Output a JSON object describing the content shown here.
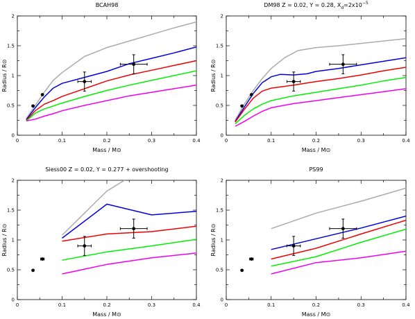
{
  "chart_data": [
    {
      "type": "line",
      "title": "BCAH98",
      "xlabel": "Mass / M⊙",
      "ylabel": "Radius / R⊙",
      "xlim": [
        0,
        0.4
      ],
      "ylim": [
        0,
        2
      ],
      "xticks": [
        "0",
        "0.1",
        "0.2",
        "0.3",
        "0.4"
      ],
      "yticks": [
        "0",
        "0.5",
        "1",
        "1.5",
        "2"
      ],
      "series": [
        {
          "color": "#aaaaaa",
          "points": [
            [
              0.02,
              0.28
            ],
            [
              0.04,
              0.5
            ],
            [
              0.06,
              0.72
            ],
            [
              0.08,
              0.92
            ],
            [
              0.1,
              1.05
            ],
            [
              0.15,
              1.32
            ],
            [
              0.2,
              1.47
            ],
            [
              0.25,
              1.58
            ],
            [
              0.3,
              1.69
            ],
            [
              0.35,
              1.8
            ],
            [
              0.4,
              1.9
            ]
          ]
        },
        {
          "color": "#0000dd",
          "points": [
            [
              0.02,
              0.26
            ],
            [
              0.04,
              0.46
            ],
            [
              0.06,
              0.64
            ],
            [
              0.08,
              0.79
            ],
            [
              0.1,
              0.87
            ],
            [
              0.15,
              0.97
            ],
            [
              0.2,
              1.07
            ],
            [
              0.25,
              1.2
            ],
            [
              0.3,
              1.29
            ],
            [
              0.35,
              1.38
            ],
            [
              0.4,
              1.48
            ]
          ]
        },
        {
          "color": "#ee0000",
          "points": [
            [
              0.02,
              0.25
            ],
            [
              0.04,
              0.41
            ],
            [
              0.06,
              0.52
            ],
            [
              0.08,
              0.58
            ],
            [
              0.1,
              0.65
            ],
            [
              0.15,
              0.78
            ],
            [
              0.2,
              0.91
            ],
            [
              0.25,
              1.01
            ],
            [
              0.3,
              1.09
            ],
            [
              0.35,
              1.17
            ],
            [
              0.4,
              1.25
            ]
          ]
        },
        {
          "color": "#00ee00",
          "points": [
            [
              0.02,
              0.24
            ],
            [
              0.04,
              0.37
            ],
            [
              0.06,
              0.44
            ],
            [
              0.08,
              0.49
            ],
            [
              0.1,
              0.54
            ],
            [
              0.15,
              0.65
            ],
            [
              0.2,
              0.75
            ],
            [
              0.25,
              0.84
            ],
            [
              0.3,
              0.92
            ],
            [
              0.35,
              1.0
            ],
            [
              0.4,
              1.08
            ]
          ]
        },
        {
          "color": "#ee00ee",
          "points": [
            [
              0.02,
              0.24
            ],
            [
              0.04,
              0.27
            ],
            [
              0.06,
              0.32
            ],
            [
              0.08,
              0.36
            ],
            [
              0.1,
              0.41
            ],
            [
              0.15,
              0.5
            ],
            [
              0.2,
              0.58
            ],
            [
              0.25,
              0.66
            ],
            [
              0.3,
              0.72
            ],
            [
              0.35,
              0.78
            ],
            [
              0.4,
              0.84
            ]
          ]
        }
      ],
      "observations": [
        {
          "x": 0.035,
          "y": 0.49,
          "xerr": 0,
          "yerr": 0
        },
        {
          "x": 0.056,
          "y": 0.68,
          "xerr": 0,
          "yerr": 0
        },
        {
          "x": 0.15,
          "y": 0.9,
          "xerr": 0.015,
          "yerr": 0.16
        },
        {
          "x": 0.26,
          "y": 1.19,
          "xerr": 0.03,
          "yerr": 0.16
        }
      ]
    },
    {
      "type": "line",
      "title": "DM98 Z = 0.02, Y = 0.28, X_d=2x10^-5",
      "title_parts": {
        "main": "DM98 Z = 0.02, Y = 0.28, X",
        "sub": "d",
        "rest": "=2x10",
        "sup": "−5"
      },
      "xlabel": "Mass / M⊙",
      "ylabel": "Radius / R⊙",
      "xlim": [
        0,
        0.4
      ],
      "ylim": [
        0,
        2
      ],
      "xticks": [
        "0",
        "0.1",
        "0.2",
        "0.3",
        "0.4"
      ],
      "yticks": [
        "0",
        "0.5",
        "1",
        "1.5",
        "2"
      ],
      "series": [
        {
          "color": "#aaaaaa",
          "points": [
            [
              0.02,
              0.25
            ],
            [
              0.04,
              0.52
            ],
            [
              0.06,
              0.75
            ],
            [
              0.08,
              0.95
            ],
            [
              0.1,
              1.12
            ],
            [
              0.13,
              1.3
            ],
            [
              0.16,
              1.42
            ],
            [
              0.2,
              1.47
            ],
            [
              0.25,
              1.5
            ],
            [
              0.3,
              1.54
            ],
            [
              0.35,
              1.58
            ],
            [
              0.4,
              1.62
            ]
          ]
        },
        {
          "color": "#0000dd",
          "points": [
            [
              0.02,
              0.23
            ],
            [
              0.04,
              0.47
            ],
            [
              0.06,
              0.7
            ],
            [
              0.08,
              0.88
            ],
            [
              0.1,
              0.98
            ],
            [
              0.12,
              1.02
            ],
            [
              0.15,
              1.01
            ],
            [
              0.18,
              1.03
            ],
            [
              0.2,
              1.07
            ],
            [
              0.25,
              1.12
            ],
            [
              0.3,
              1.18
            ],
            [
              0.35,
              1.24
            ],
            [
              0.4,
              1.3
            ]
          ]
        },
        {
          "color": "#ee0000",
          "points": [
            [
              0.02,
              0.22
            ],
            [
              0.04,
              0.43
            ],
            [
              0.06,
              0.62
            ],
            [
              0.08,
              0.74
            ],
            [
              0.1,
              0.79
            ],
            [
              0.15,
              0.84
            ],
            [
              0.2,
              0.9
            ],
            [
              0.25,
              0.95
            ],
            [
              0.3,
              1.01
            ],
            [
              0.35,
              1.08
            ],
            [
              0.4,
              1.14
            ]
          ]
        },
        {
          "color": "#00ee00",
          "points": [
            [
              0.02,
              0.19
            ],
            [
              0.04,
              0.33
            ],
            [
              0.06,
              0.44
            ],
            [
              0.08,
              0.52
            ],
            [
              0.1,
              0.58
            ],
            [
              0.15,
              0.66
            ],
            [
              0.2,
              0.72
            ],
            [
              0.25,
              0.78
            ],
            [
              0.3,
              0.84
            ],
            [
              0.35,
              0.91
            ],
            [
              0.4,
              0.97
            ]
          ]
        },
        {
          "color": "#ee00ee",
          "points": [
            [
              0.02,
              0.15
            ],
            [
              0.04,
              0.23
            ],
            [
              0.06,
              0.32
            ],
            [
              0.08,
              0.4
            ],
            [
              0.1,
              0.46
            ],
            [
              0.15,
              0.53
            ],
            [
              0.2,
              0.58
            ],
            [
              0.25,
              0.63
            ],
            [
              0.3,
              0.68
            ],
            [
              0.35,
              0.73
            ],
            [
              0.4,
              0.78
            ]
          ]
        }
      ],
      "observations": [
        {
          "x": 0.035,
          "y": 0.49,
          "xerr": 0,
          "yerr": 0
        },
        {
          "x": 0.056,
          "y": 0.68,
          "xerr": 0,
          "yerr": 0
        },
        {
          "x": 0.15,
          "y": 0.9,
          "xerr": 0.015,
          "yerr": 0.16
        },
        {
          "x": 0.26,
          "y": 1.19,
          "xerr": 0.03,
          "yerr": 0.16
        }
      ]
    },
    {
      "type": "line",
      "title": "Siess00 Z = 0.02, Y = 0.277 + overshooting",
      "xlabel": "Mass / M⊙",
      "ylabel": "Radius / R⊙",
      "xlim": [
        0,
        0.4
      ],
      "ylim": [
        0,
        2
      ],
      "xticks": [
        "0",
        "0.1",
        "0.2",
        "0.3",
        "0.4"
      ],
      "yticks": [
        "0",
        "0.5",
        "1",
        "1.5",
        "2"
      ],
      "series": [
        {
          "color": "#aaaaaa",
          "points": [
            [
              0.1,
              1.08
            ],
            [
              0.2,
              1.82
            ],
            [
              0.25,
              2.05
            ]
          ]
        },
        {
          "color": "#0000dd",
          "points": [
            [
              0.1,
              1.03
            ],
            [
              0.2,
              1.6
            ],
            [
              0.3,
              1.42
            ],
            [
              0.4,
              1.48
            ]
          ]
        },
        {
          "color": "#ee0000",
          "points": [
            [
              0.1,
              0.98
            ],
            [
              0.2,
              1.1
            ],
            [
              0.3,
              1.14
            ],
            [
              0.4,
              1.23
            ]
          ]
        },
        {
          "color": "#00ee00",
          "points": [
            [
              0.1,
              0.66
            ],
            [
              0.2,
              0.8
            ],
            [
              0.3,
              0.9
            ],
            [
              0.4,
              1.01
            ]
          ]
        },
        {
          "color": "#ee00ee",
          "points": [
            [
              0.1,
              0.43
            ],
            [
              0.2,
              0.59
            ],
            [
              0.3,
              0.7
            ],
            [
              0.4,
              0.78
            ]
          ]
        }
      ],
      "observations": [
        {
          "x": 0.035,
          "y": 0.49,
          "xerr": 0,
          "yerr": 0
        },
        {
          "x": 0.056,
          "y": 0.68,
          "xerr": 0.004,
          "yerr": 0
        },
        {
          "x": 0.15,
          "y": 0.9,
          "xerr": 0.015,
          "yerr": 0.16
        },
        {
          "x": 0.26,
          "y": 1.19,
          "xerr": 0.03,
          "yerr": 0.16
        }
      ]
    },
    {
      "type": "line",
      "title": "PS99",
      "xlabel": "Mass / M⊙",
      "ylabel": "Radius / R⊙",
      "xlim": [
        0,
        0.4
      ],
      "ylim": [
        0,
        2
      ],
      "xticks": [
        "0",
        "0.1",
        "0.2",
        "0.3",
        "0.4"
      ],
      "yticks": [
        "0",
        "0.5",
        "1",
        "1.5",
        "2"
      ],
      "series": [
        {
          "color": "#aaaaaa",
          "points": [
            [
              0.1,
              1.19
            ],
            [
              0.2,
              1.45
            ],
            [
              0.3,
              1.65
            ],
            [
              0.4,
              1.87
            ]
          ]
        },
        {
          "color": "#0000dd",
          "points": [
            [
              0.1,
              0.84
            ],
            [
              0.2,
              1.02
            ],
            [
              0.3,
              1.2
            ],
            [
              0.4,
              1.4
            ]
          ]
        },
        {
          "color": "#ee0000",
          "points": [
            [
              0.1,
              0.68
            ],
            [
              0.2,
              0.86
            ],
            [
              0.3,
              1.1
            ],
            [
              0.4,
              1.33
            ]
          ]
        },
        {
          "color": "#00ee00",
          "points": [
            [
              0.1,
              0.56
            ],
            [
              0.2,
              0.72
            ],
            [
              0.3,
              0.96
            ],
            [
              0.4,
              1.18
            ]
          ]
        },
        {
          "color": "#ee00ee",
          "points": [
            [
              0.1,
              0.43
            ],
            [
              0.2,
              0.62
            ],
            [
              0.3,
              0.7
            ],
            [
              0.4,
              0.81
            ]
          ]
        }
      ],
      "observations": [
        {
          "x": 0.035,
          "y": 0.49,
          "xerr": 0,
          "yerr": 0
        },
        {
          "x": 0.056,
          "y": 0.68,
          "xerr": 0.004,
          "yerr": 0
        },
        {
          "x": 0.15,
          "y": 0.9,
          "xerr": 0.015,
          "yerr": 0.16
        },
        {
          "x": 0.26,
          "y": 1.19,
          "xerr": 0.03,
          "yerr": 0.16
        }
      ]
    }
  ]
}
